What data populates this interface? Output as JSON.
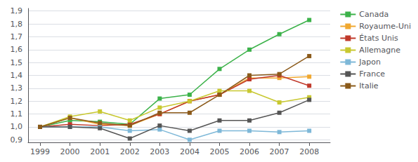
{
  "chart_data": {
    "type": "line",
    "x": [
      1999,
      2000,
      2001,
      2002,
      2003,
      2004,
      2005,
      2006,
      2007,
      2008
    ],
    "xlim": [
      1998.6,
      2008.7
    ],
    "xticks": [
      1999,
      2000,
      2001,
      2002,
      2003,
      2004,
      2005,
      2006,
      2007,
      2008
    ],
    "ylim": [
      0.88,
      1.92
    ],
    "yticks": [
      {
        "value": 0.9,
        "label": "0,9"
      },
      {
        "value": 1.0,
        "label": "1,0"
      },
      {
        "value": 1.1,
        "label": "1,1"
      },
      {
        "value": 1.2,
        "label": "1,2"
      },
      {
        "value": 1.3,
        "label": "1,3"
      },
      {
        "value": 1.4,
        "label": "1,4"
      },
      {
        "value": 1.5,
        "label": "1,5"
      },
      {
        "value": 1.6,
        "label": "1,6"
      },
      {
        "value": 1.7,
        "label": "1,7"
      },
      {
        "value": 1.8,
        "label": "1,8"
      },
      {
        "value": 1.9,
        "label": "1,9"
      }
    ],
    "grid": true,
    "legend": "right",
    "marker": "square",
    "series": [
      {
        "name": "Canada",
        "color": "#3cb24a",
        "values": [
          1.0,
          1.05,
          1.04,
          1.02,
          1.22,
          1.25,
          1.45,
          1.6,
          1.72,
          1.83
        ]
      },
      {
        "name": "Royaume-Uni",
        "color": "#f0a830",
        "values": [
          1.0,
          1.07,
          1.02,
          1.01,
          1.1,
          1.2,
          1.25,
          1.38,
          1.38,
          1.39
        ]
      },
      {
        "name": "États Unis",
        "color": "#c0392b",
        "values": [
          1.0,
          1.02,
          1.01,
          1.02,
          1.1,
          1.2,
          1.25,
          1.37,
          1.4,
          1.32
        ]
      },
      {
        "name": "Allemagne",
        "color": "#c8c830",
        "values": [
          1.0,
          1.08,
          1.12,
          1.05,
          1.15,
          1.2,
          1.28,
          1.28,
          1.19,
          1.23
        ]
      },
      {
        "name": "Japon",
        "color": "#7eb8d8",
        "values": [
          1.0,
          1.0,
          1.0,
          0.97,
          0.98,
          0.9,
          0.97,
          0.97,
          0.96,
          0.97
        ]
      },
      {
        "name": "France",
        "color": "#555555",
        "values": [
          1.0,
          1.0,
          0.99,
          0.91,
          1.01,
          0.97,
          1.05,
          1.05,
          1.11,
          1.21
        ]
      },
      {
        "name": "Italie",
        "color": "#8b5a1a",
        "values": [
          1.0,
          1.07,
          1.03,
          1.01,
          1.11,
          1.11,
          1.25,
          1.4,
          1.41,
          1.55
        ]
      }
    ]
  }
}
